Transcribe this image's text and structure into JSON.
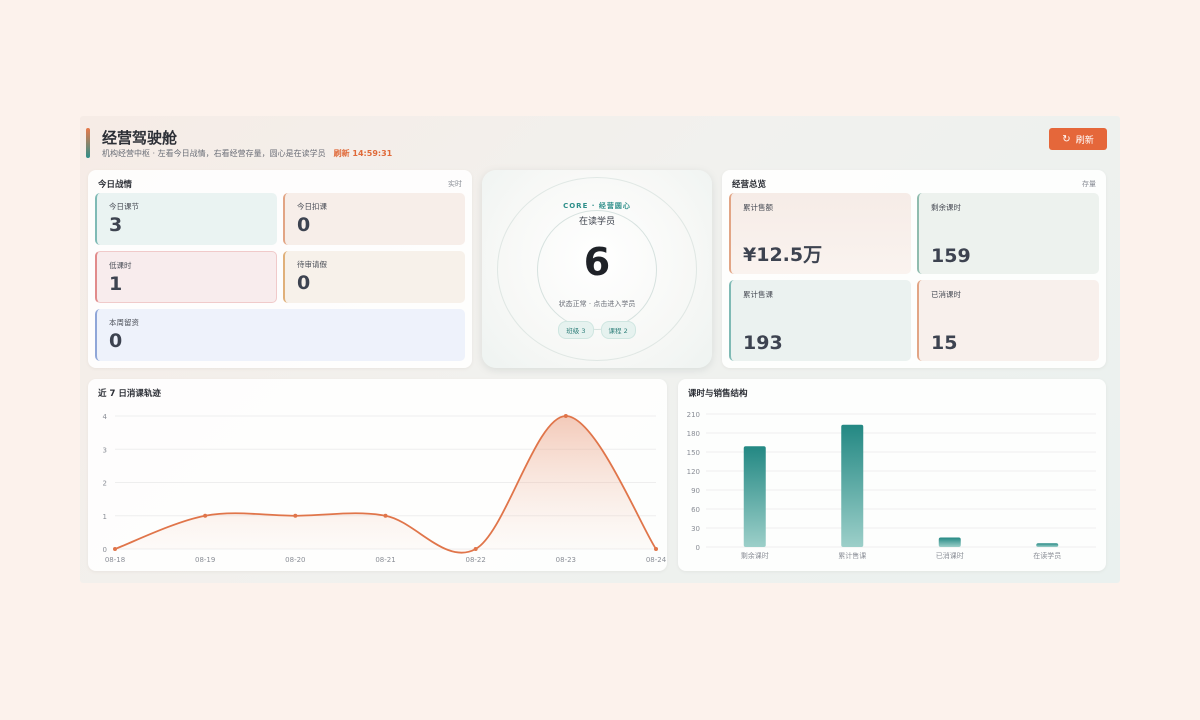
{
  "header": {
    "title": "经营驾驶舱",
    "subtitle": "机构经营中枢 · 左看今日战情，右看经营存量，圆心是在读学员",
    "refresh_time": "刷新 14:59:31",
    "refresh_button": "刷新",
    "refresh_icon": "refresh-icon"
  },
  "today": {
    "title": "今日战情",
    "tag": "实时",
    "tiles": [
      {
        "label": "今日课节",
        "value": "3"
      },
      {
        "label": "今日扣课",
        "value": "0"
      },
      {
        "label": "低课时",
        "value": "1"
      },
      {
        "label": "待审请假",
        "value": "0"
      },
      {
        "label": "本周留资",
        "value": "0"
      }
    ]
  },
  "core": {
    "kicker": "CORE · 经营圆心",
    "label": "在读学员",
    "value": "6",
    "status": "状态正常 · 点击进入学员",
    "chips": [
      "班级 3",
      "课程 2"
    ]
  },
  "overview": {
    "title": "经营总览",
    "tag": "存量",
    "tiles": [
      {
        "label": "累计售额",
        "value": "¥12.5万"
      },
      {
        "label": "剩余课时",
        "value": "159"
      },
      {
        "label": "累计售课",
        "value": "193"
      },
      {
        "label": "已消课时",
        "value": "15"
      }
    ]
  },
  "colors": {
    "accent": "#e5673a",
    "teal": "#2f8f8a",
    "line": "#e0754a"
  },
  "chart_data": [
    {
      "type": "line",
      "title": "近 7 日消课轨迹",
      "x": [
        "08-18",
        "08-19",
        "08-20",
        "08-21",
        "08-22",
        "08-23",
        "08-24"
      ],
      "values": [
        0,
        1,
        1,
        1,
        0,
        4,
        0
      ],
      "ylim": [
        0,
        4
      ],
      "yticks": [
        0,
        1,
        2,
        3,
        4
      ],
      "grid": true
    },
    {
      "type": "bar",
      "title": "课时与销售结构",
      "categories": [
        "剩余课时",
        "累计售课",
        "已消课时",
        "在读学员"
      ],
      "values": [
        159,
        193,
        15,
        6
      ],
      "ylim": [
        0,
        210
      ],
      "yticks": [
        0,
        30,
        60,
        90,
        120,
        150,
        180,
        210
      ],
      "grid": true
    }
  ]
}
